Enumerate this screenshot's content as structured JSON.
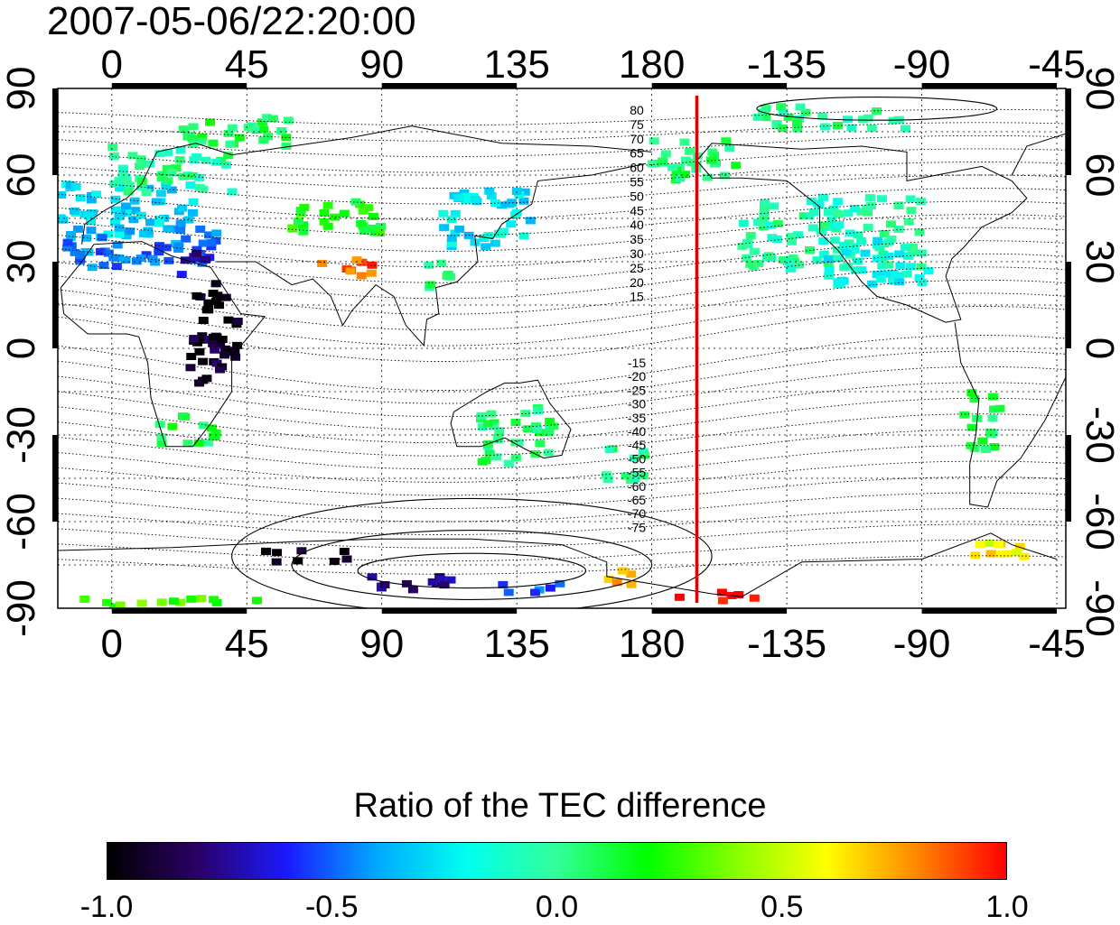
{
  "timestamp": "2007-05-06/22:20:00",
  "map": {
    "x_ticks": [
      "0",
      "45",
      "90",
      "135",
      "180",
      "-135",
      "-90",
      "-45"
    ],
    "x_tick_lons": [
      0,
      45,
      90,
      135,
      180,
      225,
      270,
      315
    ],
    "y_ticks": [
      "90",
      "60",
      "30",
      "0",
      "-30",
      "-60",
      "-90"
    ],
    "y_tick_lats": [
      90,
      60,
      30,
      0,
      -30,
      -60,
      -90
    ],
    "lon_range": [
      -18,
      318
    ],
    "lat_range": [
      -90,
      90
    ],
    "grid": true,
    "meridian_marker_lon": 195,
    "meridian_marker_color": "#dd0000",
    "contour_labels_north": [
      "80",
      "75",
      "70",
      "65",
      "60",
      "55",
      "50",
      "45",
      "40",
      "35",
      "30",
      "25",
      "20",
      "15"
    ],
    "contour_labels_south": [
      "-15",
      "-20",
      "-25",
      "-30",
      "-35",
      "-40",
      "-45",
      "-50",
      "-55",
      "-60",
      "-65",
      "-70",
      "-75"
    ]
  },
  "colorbar": {
    "title": "Ratio of the TEC difference",
    "ticks": [
      "-1.0",
      "-0.5",
      "0.0",
      "0.5",
      "1.0"
    ],
    "tick_values": [
      -1.0,
      -0.5,
      0.0,
      0.5,
      1.0
    ],
    "range": [
      -1.0,
      1.0
    ],
    "colors": [
      "#000000",
      "#2a0066",
      "#1a1aff",
      "#00aaff",
      "#00ffee",
      "#33ff99",
      "#00ff00",
      "#88ff00",
      "#ffff00",
      "#ff8800",
      "#ff0000"
    ]
  },
  "data_patches": [
    {
      "lon": 5,
      "lat": 48,
      "w": 45,
      "h": 20,
      "v": -0.3
    },
    {
      "lon": 10,
      "lat": 35,
      "w": 50,
      "h": 14,
      "v": -0.45
    },
    {
      "lon": 20,
      "lat": 62,
      "w": 40,
      "h": 16,
      "v": 0.0
    },
    {
      "lon": 40,
      "lat": 75,
      "w": 40,
      "h": 10,
      "v": 0.1
    },
    {
      "lon": 75,
      "lat": 45,
      "w": 30,
      "h": 12,
      "v": 0.2
    },
    {
      "lon": 78,
      "lat": 28,
      "w": 20,
      "h": 6,
      "v": 0.85
    },
    {
      "lon": 35,
      "lat": 10,
      "w": 14,
      "h": 28,
      "v": -1.0
    },
    {
      "lon": 32,
      "lat": -5,
      "w": 12,
      "h": 20,
      "v": -0.9
    },
    {
      "lon": 28,
      "lat": 28,
      "w": 10,
      "h": 10,
      "v": -0.7
    },
    {
      "lon": 25,
      "lat": -28,
      "w": 20,
      "h": 10,
      "v": 0.1
    },
    {
      "lon": 125,
      "lat": 45,
      "w": 30,
      "h": 20,
      "v": -0.25
    },
    {
      "lon": 110,
      "lat": 25,
      "w": 10,
      "h": 10,
      "v": 0.05
    },
    {
      "lon": 135,
      "lat": -30,
      "w": 25,
      "h": 20,
      "v": 0.05
    },
    {
      "lon": 170,
      "lat": -40,
      "w": 15,
      "h": 12,
      "v": 0.05
    },
    {
      "lon": 195,
      "lat": 65,
      "w": 30,
      "h": 14,
      "v": 0.05
    },
    {
      "lon": 240,
      "lat": 40,
      "w": 60,
      "h": 25,
      "v": -0.05
    },
    {
      "lon": 255,
      "lat": 30,
      "w": 35,
      "h": 16,
      "v": -0.2
    },
    {
      "lon": 240,
      "lat": 80,
      "w": 50,
      "h": 8,
      "v": 0.0
    },
    {
      "lon": 290,
      "lat": -25,
      "w": 12,
      "h": 20,
      "v": 0.1
    },
    {
      "lon": 295,
      "lat": -70,
      "w": 20,
      "h": 8,
      "v": 0.6
    },
    {
      "lon": 100,
      "lat": -82,
      "w": 28,
      "h": 6,
      "v": -0.7
    },
    {
      "lon": 65,
      "lat": -72,
      "w": 30,
      "h": 4,
      "v": -1.0
    },
    {
      "lon": 140,
      "lat": -83,
      "w": 20,
      "h": 4,
      "v": -0.5
    },
    {
      "lon": 200,
      "lat": -86,
      "w": 30,
      "h": 3,
      "v": 1.0
    },
    {
      "lon": 20,
      "lat": -88,
      "w": 60,
      "h": 3,
      "v": 0.3
    },
    {
      "lon": 170,
      "lat": -80,
      "w": 10,
      "h": 6,
      "v": 0.7
    }
  ]
}
